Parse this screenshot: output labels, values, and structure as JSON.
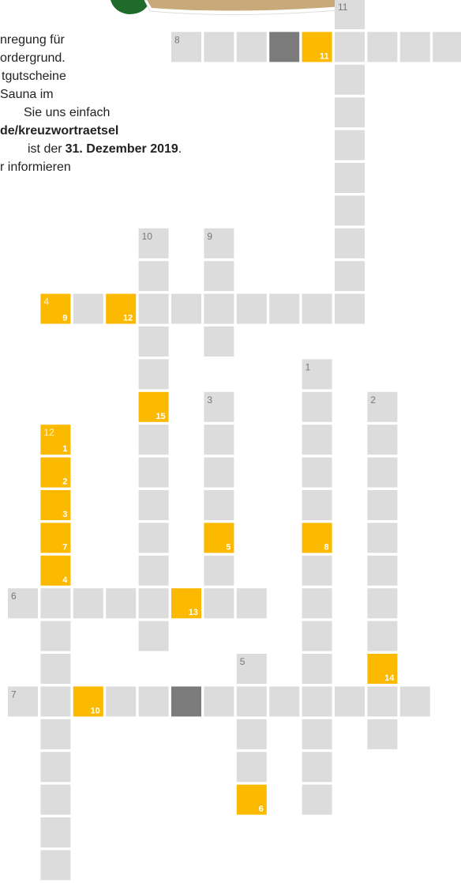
{
  "intro": [
    "nregung für",
    "ordergrund.",
    "tgutscheine",
    "Sauna im",
    "Sie uns einfach",
    "de/kreuzwortraetsel",
    [
      "ist der",
      "31. Dezember 2019",
      "."
    ],
    "r informieren"
  ],
  "clue_numbers": [
    11,
    8,
    10,
    9,
    4,
    1,
    3,
    2,
    12,
    6,
    5,
    7
  ],
  "solution_numbers": [
    11,
    9,
    12,
    15,
    1,
    2,
    3,
    5,
    8,
    7,
    4,
    13,
    14,
    10,
    6
  ]
}
